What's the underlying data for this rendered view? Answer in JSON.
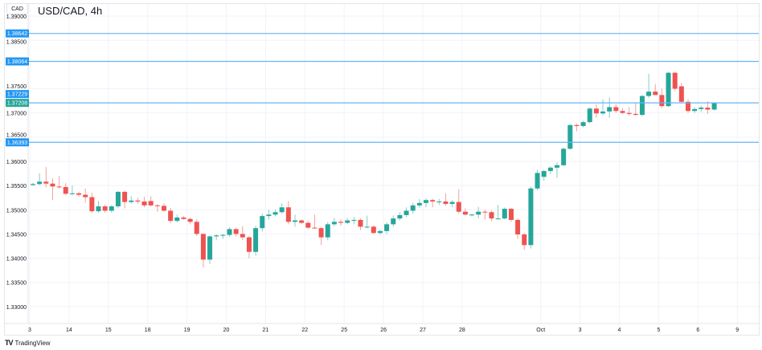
{
  "header": {
    "currency_button": "CAD",
    "title": "USD/CAD, 4h"
  },
  "brand": {
    "logo": "TV",
    "name": "TradingView"
  },
  "colors": {
    "up": "#26a69a",
    "down": "#ef5350",
    "level_line": "#64b5f6",
    "level_label": "#2196f3",
    "last_price": "#26a69a"
  },
  "chart_data": {
    "type": "candlestick",
    "title": "USD/CAD, 4h",
    "ylim": [
      1.3265,
      1.3925
    ],
    "y_ticks": [
      "1.39000",
      "1.38500",
      "1.37500",
      "1.37000",
      "1.36500",
      "1.36000",
      "1.35500",
      "1.35000",
      "1.34500",
      "1.34000",
      "1.33500",
      "1.33000"
    ],
    "x_ticks": [
      "3",
      "14",
      "15",
      "18",
      "19",
      "20",
      "21",
      "22",
      "25",
      "26",
      "27",
      "28",
      "Oct",
      "3",
      "4",
      "5",
      "6",
      "9"
    ],
    "grid": true,
    "levels": [
      {
        "value": "1.38642",
        "line": true,
        "kind": "level"
      },
      {
        "value": "1.38064",
        "line": true,
        "kind": "level"
      },
      {
        "value": "1.37229",
        "line": false,
        "kind": "level"
      },
      {
        "value": "1.37208",
        "line": true,
        "kind": "last"
      },
      {
        "value": "1.36393",
        "line": true,
        "kind": "level"
      }
    ],
    "ohlc": [
      [
        1.3551,
        1.3556,
        1.355,
        1.3553
      ],
      [
        1.3553,
        1.3575,
        1.3551,
        1.3558
      ],
      [
        1.3558,
        1.3588,
        1.3546,
        1.3554
      ],
      [
        1.3554,
        1.3565,
        1.352,
        1.3548
      ],
      [
        1.3548,
        1.357,
        1.3543,
        1.3547
      ],
      [
        1.3547,
        1.3555,
        1.353,
        1.3533
      ],
      [
        1.3533,
        1.355,
        1.353,
        1.3534
      ],
      [
        1.3534,
        1.3537,
        1.3527,
        1.3531
      ],
      [
        1.3531,
        1.3544,
        1.3515,
        1.3526
      ],
      [
        1.3526,
        1.3535,
        1.3494,
        1.3497
      ],
      [
        1.3497,
        1.3518,
        1.3494,
        1.3507
      ],
      [
        1.3507,
        1.3511,
        1.3494,
        1.3498
      ],
      [
        1.3498,
        1.351,
        1.3494,
        1.3507
      ],
      [
        1.3507,
        1.3539,
        1.3503,
        1.3537
      ],
      [
        1.3537,
        1.354,
        1.3503,
        1.3516
      ],
      [
        1.3516,
        1.3528,
        1.3513,
        1.3519
      ],
      [
        1.3519,
        1.3525,
        1.3512,
        1.3517
      ],
      [
        1.3517,
        1.3527,
        1.3505,
        1.3509
      ],
      [
        1.3518,
        1.3528,
        1.3507,
        1.3509
      ],
      [
        1.3509,
        1.3512,
        1.3496,
        1.3508
      ],
      [
        1.3508,
        1.3513,
        1.3496,
        1.3498
      ],
      [
        1.3498,
        1.3504,
        1.3472,
        1.3477
      ],
      [
        1.3477,
        1.349,
        1.3474,
        1.3484
      ],
      [
        1.3484,
        1.3487,
        1.3479,
        1.3481
      ],
      [
        1.3481,
        1.3484,
        1.347,
        1.3475
      ],
      [
        1.3475,
        1.348,
        1.3446,
        1.345
      ],
      [
        1.345,
        1.3452,
        1.3381,
        1.3397
      ],
      [
        1.3397,
        1.3447,
        1.3388,
        1.3445
      ],
      [
        1.3445,
        1.3449,
        1.3437,
        1.3447
      ],
      [
        1.3447,
        1.345,
        1.344,
        1.3448
      ],
      [
        1.3448,
        1.3464,
        1.3444,
        1.346
      ],
      [
        1.346,
        1.3463,
        1.3445,
        1.345
      ],
      [
        1.345,
        1.3466,
        1.3437,
        1.3443
      ],
      [
        1.3443,
        1.3446,
        1.34,
        1.3413
      ],
      [
        1.3413,
        1.3467,
        1.3405,
        1.3462
      ],
      [
        1.3462,
        1.3492,
        1.3455,
        1.3487
      ],
      [
        1.3487,
        1.35,
        1.348,
        1.349
      ],
      [
        1.349,
        1.35,
        1.3486,
        1.3495
      ],
      [
        1.3495,
        1.3513,
        1.3492,
        1.3505
      ],
      [
        1.3505,
        1.3518,
        1.347,
        1.3475
      ],
      [
        1.3475,
        1.349,
        1.3465,
        1.3478
      ],
      [
        1.3478,
        1.348,
        1.347,
        1.3473
      ],
      [
        1.3473,
        1.3476,
        1.346,
        1.3463
      ],
      [
        1.3463,
        1.349,
        1.3461,
        1.3462
      ],
      [
        1.3462,
        1.3465,
        1.3427,
        1.3443
      ],
      [
        1.3443,
        1.3475,
        1.3437,
        1.347
      ],
      [
        1.347,
        1.3483,
        1.3466,
        1.3475
      ],
      [
        1.3475,
        1.348,
        1.3467,
        1.3473
      ],
      [
        1.3473,
        1.3483,
        1.347,
        1.3478
      ],
      [
        1.3478,
        1.3485,
        1.347,
        1.3479
      ],
      [
        1.3479,
        1.3482,
        1.3458,
        1.3465
      ],
      [
        1.3465,
        1.3488,
        1.3462,
        1.3465
      ],
      [
        1.3465,
        1.3468,
        1.345,
        1.3452
      ],
      [
        1.3452,
        1.3458,
        1.3448,
        1.3456
      ],
      [
        1.3456,
        1.3474,
        1.345,
        1.347
      ],
      [
        1.347,
        1.3488,
        1.3465,
        1.3482
      ],
      [
        1.3482,
        1.3495,
        1.3478,
        1.3489
      ],
      [
        1.3489,
        1.3505,
        1.3485,
        1.3498
      ],
      [
        1.3498,
        1.3514,
        1.3492,
        1.3509
      ],
      [
        1.3509,
        1.3522,
        1.3504,
        1.3514
      ],
      [
        1.3514,
        1.3524,
        1.3505,
        1.352
      ],
      [
        1.352,
        1.3523,
        1.3505,
        1.3517
      ],
      [
        1.3517,
        1.3522,
        1.351,
        1.3517
      ],
      [
        1.3517,
        1.3534,
        1.3508,
        1.3512
      ],
      [
        1.3512,
        1.352,
        1.3505,
        1.3516
      ],
      [
        1.3516,
        1.3542,
        1.3492,
        1.3496
      ],
      [
        1.3496,
        1.3503,
        1.3488,
        1.349
      ],
      [
        1.349,
        1.3492,
        1.3486,
        1.349
      ],
      [
        1.349,
        1.3506,
        1.3482,
        1.3496
      ],
      [
        1.3496,
        1.35,
        1.348,
        1.3495
      ],
      [
        1.3495,
        1.3498,
        1.3476,
        1.3482
      ],
      [
        1.3482,
        1.351,
        1.348,
        1.3482
      ],
      [
        1.3482,
        1.3505,
        1.348,
        1.3502
      ],
      [
        1.3502,
        1.3504,
        1.3475,
        1.3479
      ],
      [
        1.3479,
        1.3482,
        1.344,
        1.3449
      ],
      [
        1.3449,
        1.3452,
        1.3417,
        1.3427
      ],
      [
        1.3427,
        1.3548,
        1.342,
        1.3544
      ],
      [
        1.3544,
        1.3582,
        1.354,
        1.3576
      ],
      [
        1.3568,
        1.3582,
        1.356,
        1.358
      ],
      [
        1.358,
        1.359,
        1.3574,
        1.3587
      ],
      [
        1.3587,
        1.3598,
        1.3566,
        1.3592
      ],
      [
        1.3592,
        1.3628,
        1.359,
        1.3626
      ],
      [
        1.3626,
        1.3677,
        1.3624,
        1.3675
      ],
      [
        1.3675,
        1.3678,
        1.3662,
        1.3673
      ],
      [
        1.3673,
        1.3684,
        1.367,
        1.3681
      ],
      [
        1.3681,
        1.3712,
        1.3679,
        1.3709
      ],
      [
        1.3709,
        1.3718,
        1.369,
        1.3699
      ],
      [
        1.3699,
        1.3728,
        1.3695,
        1.3703
      ],
      [
        1.3703,
        1.3732,
        1.369,
        1.3712
      ],
      [
        1.3712,
        1.3718,
        1.37,
        1.3704
      ],
      [
        1.3704,
        1.371,
        1.3698,
        1.37
      ],
      [
        1.37,
        1.3712,
        1.3694,
        1.3698
      ],
      [
        1.3698,
        1.3722,
        1.3694,
        1.3696
      ],
      [
        1.3696,
        1.3737,
        1.3693,
        1.3735
      ],
      [
        1.3735,
        1.3781,
        1.3731,
        1.3744
      ],
      [
        1.3744,
        1.376,
        1.3739,
        1.3737
      ],
      [
        1.3737,
        1.375,
        1.371,
        1.3714
      ],
      [
        1.3714,
        1.3784,
        1.3712,
        1.3783
      ],
      [
        1.3783,
        1.3785,
        1.3745,
        1.375
      ],
      [
        1.3755,
        1.3762,
        1.372,
        1.3723
      ],
      [
        1.3723,
        1.3728,
        1.37,
        1.3704
      ],
      [
        1.3704,
        1.3712,
        1.37,
        1.3708
      ],
      [
        1.3708,
        1.3715,
        1.3702,
        1.3711
      ],
      [
        1.3711,
        1.3724,
        1.3698,
        1.3707
      ],
      [
        1.3707,
        1.3722,
        1.3705,
        1.3721
      ]
    ]
  }
}
